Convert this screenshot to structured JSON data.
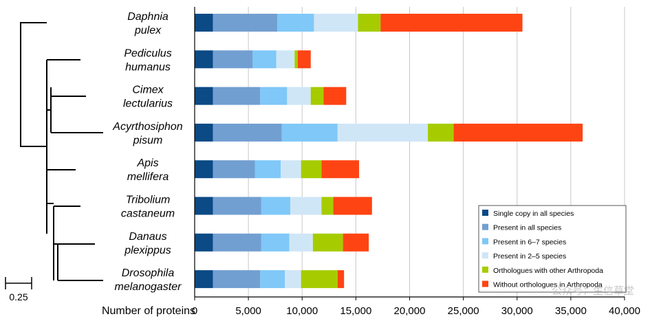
{
  "chart_data": {
    "type": "bar",
    "orientation": "horizontal",
    "stacked": true,
    "xlabel": "Number of proteins",
    "xlim": [
      0,
      40000
    ],
    "xticks": [
      0,
      5000,
      10000,
      15000,
      20000,
      25000,
      30000,
      35000,
      40000
    ],
    "xtick_labels": [
      "0",
      "5,000",
      "10,000",
      "15,000",
      "20,000",
      "25,000",
      "30,000",
      "35,000",
      "40,000"
    ],
    "grid": "vertical",
    "legend_position": "bottom-right",
    "categories": [
      {
        "line1": "Daphnia",
        "line2": "pulex"
      },
      {
        "line1": "Pediculus",
        "line2": "humanus"
      },
      {
        "line1": "Cimex",
        "line2": "lectularius"
      },
      {
        "line1": "Acyrthosiphon",
        "line2": "pisum"
      },
      {
        "line1": "Apis",
        "line2": "mellifera"
      },
      {
        "line1": "Tribolium",
        "line2": "castaneum"
      },
      {
        "line1": "Danaus",
        "line2": "plexippus"
      },
      {
        "line1": "Drosophila",
        "line2": "melanogaster"
      }
    ],
    "series": [
      {
        "name": "Single copy in all species",
        "color": "#0b4a85",
        "values": [
          1700,
          1700,
          1700,
          1700,
          1700,
          1700,
          1700,
          1700
        ]
      },
      {
        "name": "Present in all species",
        "color": "#729fd1",
        "values": [
          6000,
          3700,
          4400,
          6400,
          3900,
          4500,
          4500,
          4400
        ]
      },
      {
        "name": "Present in 6–7 species",
        "color": "#7fc8f8",
        "values": [
          3400,
          2200,
          2500,
          5200,
          2400,
          2700,
          2600,
          2300
        ]
      },
      {
        "name": "Present in 2–5 species",
        "color": "#cfe6f7",
        "values": [
          4100,
          1700,
          2200,
          8400,
          1900,
          2900,
          2200,
          1500
        ]
      },
      {
        "name": "Orthologues with other Arthropoda",
        "color": "#a6cc00",
        "values": [
          2100,
          300,
          1200,
          2400,
          1900,
          1100,
          2800,
          3400
        ]
      },
      {
        "name": "Without orthologues in Arthropoda",
        "color": "#ff4413",
        "values": [
          13200,
          1200,
          2100,
          12000,
          3500,
          3600,
          2400,
          600
        ]
      }
    ],
    "scale_bar_label": "0.25"
  },
  "watermark": "公众号：生信草堂"
}
